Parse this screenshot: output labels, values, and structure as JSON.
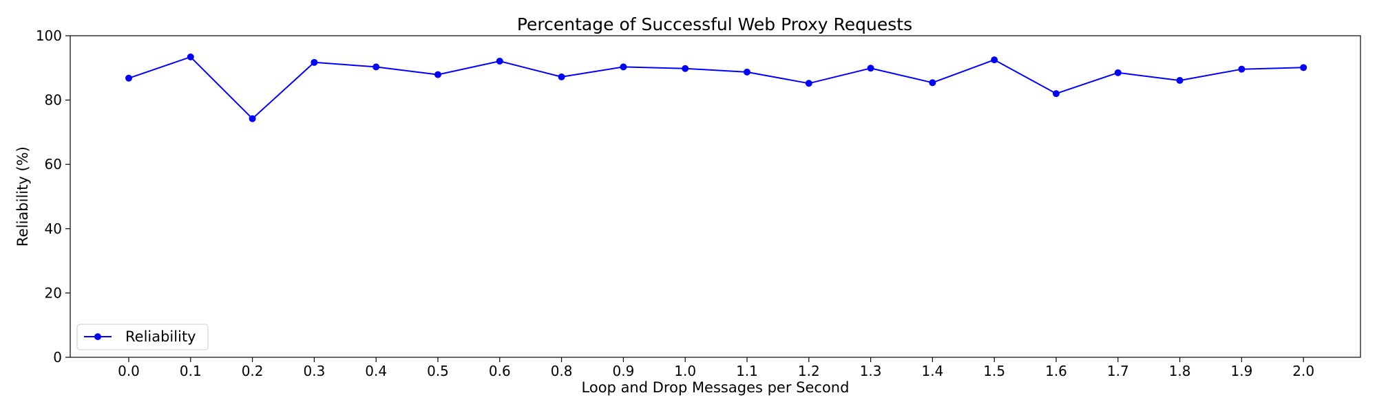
{
  "chart_data": {
    "type": "line",
    "title": "Percentage of Successful Web Proxy Requests",
    "xlabel": "Loop and Drop Messages per Second",
    "ylabel": "Reliability (%)",
    "categories": [
      "0.0",
      "0.1",
      "0.2",
      "0.3",
      "0.4",
      "0.5",
      "0.6",
      "0.8",
      "0.9",
      "1.0",
      "1.1",
      "1.2",
      "1.3",
      "1.4",
      "1.5",
      "1.6",
      "1.7",
      "1.8",
      "1.9",
      "2.0"
    ],
    "series": [
      {
        "name": "Reliability",
        "values": [
          86.8,
          93.4,
          74.2,
          91.7,
          90.3,
          87.9,
          92.1,
          87.2,
          90.3,
          89.8,
          88.7,
          85.2,
          89.9,
          85.4,
          92.5,
          82.0,
          88.5,
          86.1,
          89.6,
          90.1
        ]
      }
    ],
    "yticks": [
      0,
      20,
      40,
      60,
      80,
      100
    ],
    "ylim": [
      0,
      100
    ],
    "grid": false,
    "legend_position": "lower-left",
    "colors": {
      "series": "#0000ff",
      "axes": "#000000"
    }
  }
}
